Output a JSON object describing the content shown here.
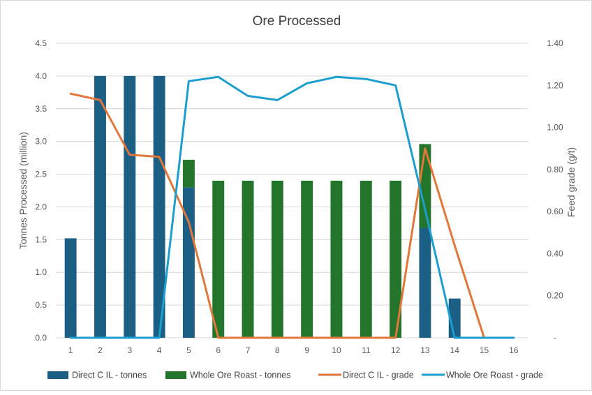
{
  "chart_data": {
    "type": "bar",
    "title": "Ore Processed",
    "xlabel": "",
    "ylabel": "Tonnes Processed (million)",
    "y2label": "Feed grade (g/t)",
    "ylim": [
      0,
      4.5
    ],
    "y2lim": [
      0,
      1.4
    ],
    "stacked": true,
    "grid": "horizontal",
    "legend_position": "bottom",
    "categories": [
      "1",
      "2",
      "3",
      "4",
      "5",
      "6",
      "7",
      "8",
      "9",
      "10",
      "11",
      "12",
      "13",
      "14",
      "15",
      "16"
    ],
    "y_ticks": [
      "0.0",
      "0.5",
      "1.0",
      "1.5",
      "2.0",
      "2.5",
      "3.0",
      "3.5",
      "4.0",
      "4.5"
    ],
    "y2_ticks": [
      "-",
      "0.20",
      "0.40",
      "0.60",
      "0.80",
      "1.00",
      "1.20",
      "1.40"
    ],
    "series": [
      {
        "name": "Direct C IL - tonnes",
        "type": "bar",
        "axis": "left",
        "color": "#1b5f84",
        "values": [
          1.52,
          4.0,
          4.0,
          4.0,
          2.3,
          0,
          0,
          0,
          0,
          0,
          0,
          0,
          1.68,
          0.6,
          0,
          0
        ]
      },
      {
        "name": "Whole Ore Roast - tonnes",
        "type": "bar",
        "axis": "left",
        "color": "#23752b",
        "values": [
          0,
          0,
          0,
          0,
          0.42,
          2.4,
          2.4,
          2.4,
          2.4,
          2.4,
          2.4,
          2.4,
          1.28,
          0,
          0,
          0
        ]
      },
      {
        "name": "Direct C IL - grade",
        "type": "line",
        "axis": "right",
        "color": "#e2773a",
        "values": [
          1.16,
          1.13,
          0.87,
          0.86,
          0.55,
          0,
          0,
          0,
          0,
          0,
          0,
          0,
          0.9,
          0.44,
          0,
          null
        ]
      },
      {
        "name": "Whole Ore Roast - grade",
        "type": "line",
        "axis": "right",
        "color": "#1b9fd0",
        "values": [
          0,
          0,
          0,
          0,
          1.22,
          1.24,
          1.15,
          1.13,
          1.21,
          1.24,
          1.23,
          1.2,
          0.61,
          0,
          0,
          0
        ]
      }
    ]
  }
}
